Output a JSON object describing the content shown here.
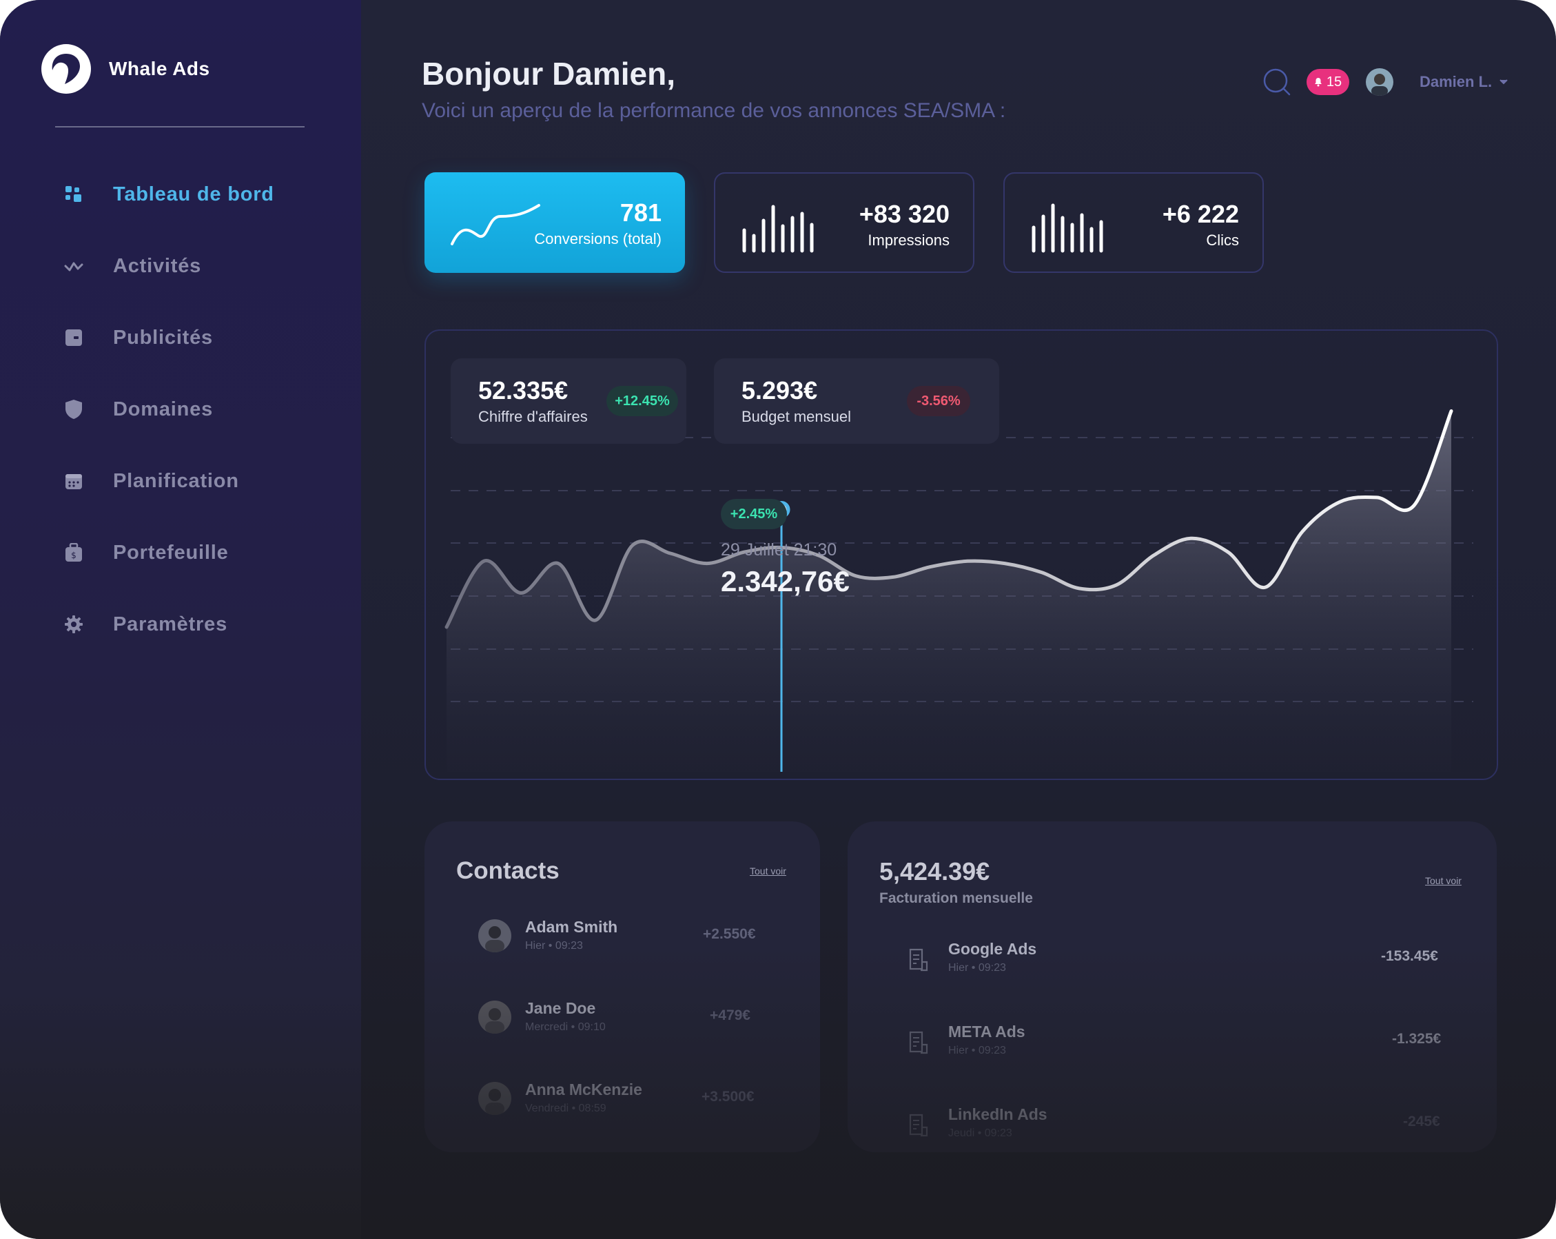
{
  "app": {
    "name": "Whale Ads"
  },
  "sidebar": {
    "items": [
      {
        "label": "Tableau de bord",
        "icon": "grid-icon",
        "active": true
      },
      {
        "label": "Activités",
        "icon": "activity-icon"
      },
      {
        "label": "Publicités",
        "icon": "ad-icon"
      },
      {
        "label": "Domaines",
        "icon": "shield-icon"
      },
      {
        "label": "Planification",
        "icon": "calendar-icon"
      },
      {
        "label": "Portefeuille",
        "icon": "wallet-icon"
      },
      {
        "label": "Paramètres",
        "icon": "gear-icon"
      }
    ]
  },
  "header": {
    "greeting": "Bonjour Damien,",
    "subtitle": "Voici un aperçu de la performance de vos annonces SEA/SMA :",
    "notifications": "15",
    "user": "Damien L."
  },
  "stats": [
    {
      "value": "781",
      "label": "Conversions (total)"
    },
    {
      "value": "+83 320",
      "label": "Impressions"
    },
    {
      "value": "+6 222",
      "label": "Clics"
    }
  ],
  "kpis": [
    {
      "value": "52.335€",
      "label": "Chiffre d'affaires",
      "change": "+12.45%"
    },
    {
      "value": "5.293€",
      "label": "Budget mensuel",
      "change": "-3.56%"
    }
  ],
  "tooltip": {
    "change": "+2.45%",
    "date": "29 Juillet 21:30",
    "value": "2.342,76€"
  },
  "chart_data": {
    "type": "area",
    "title": "",
    "xlabel": "",
    "ylabel": "",
    "grid": true,
    "x": [
      0,
      1,
      2,
      3,
      4,
      5,
      6,
      7,
      8,
      9,
      10,
      11,
      12,
      13,
      14,
      15,
      16,
      17,
      18,
      19,
      20,
      21,
      22,
      23,
      24,
      25,
      26,
      27
    ],
    "series": [
      {
        "values": [
          0.0,
          0.58,
          0.3,
          0.56,
          0.06,
          0.72,
          0.65,
          0.56,
          0.66,
          0.7,
          0.63,
          0.45,
          0.44,
          0.53,
          0.58,
          0.56,
          0.48,
          0.34,
          0.37,
          0.63,
          0.78,
          0.66,
          0.35,
          0.84,
          1.1,
          1.14,
          1.07,
          1.9
        ]
      }
    ],
    "highlight_index": 9,
    "accent": "#4fb6ea"
  },
  "contacts": {
    "title": "Contacts",
    "link": "Tout voir",
    "rows": [
      {
        "name": "Adam Smith",
        "time": "Hier • 09:23",
        "amount": "+2.550€"
      },
      {
        "name": "Jane Doe",
        "time": "Mercredi • 09:10",
        "amount": "+479€"
      },
      {
        "name": "Anna McKenzie",
        "time": "Vendredi • 08:59",
        "amount": "+3.500€"
      }
    ]
  },
  "billing": {
    "value": "5,424.39€",
    "subtitle": "Facturation mensuelle",
    "link": "Tout voir",
    "rows": [
      {
        "name": "Google Ads",
        "time": "Hier • 09:23",
        "amount": "-153.45€"
      },
      {
        "name": "META Ads",
        "time": "Hier • 09:23",
        "amount": "-1.325€"
      },
      {
        "name": "LinkedIn Ads",
        "time": "Jeudi • 09:23",
        "amount": "-245€"
      }
    ]
  },
  "colors": {
    "accent": "#4fb6ea",
    "primary_card": "#1dbcf0",
    "positive": "#3be3b0",
    "negative": "#f05a72",
    "badge": "#e8317e"
  }
}
